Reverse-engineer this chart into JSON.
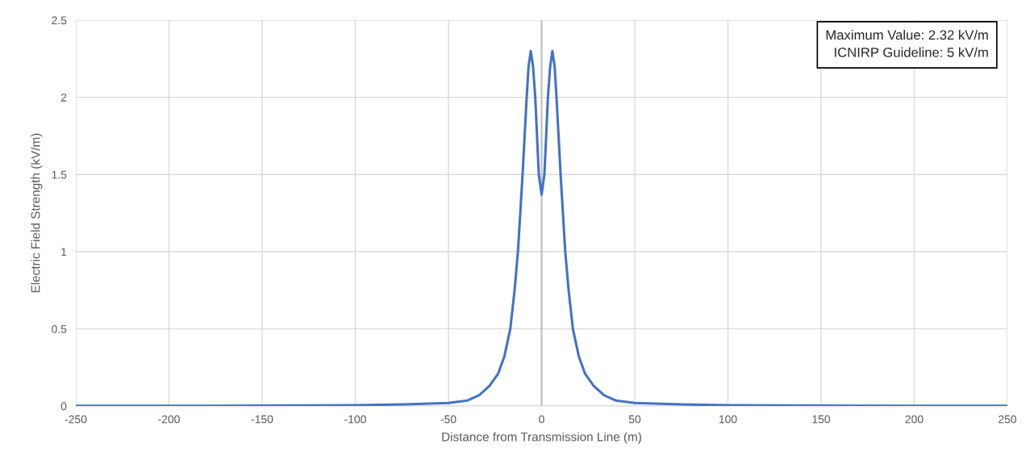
{
  "chart_data": {
    "type": "line",
    "xlabel": "Distance from Transmission Line (m)",
    "ylabel": "Electric Field Strength (kV/m)",
    "x": [
      -250,
      -200,
      -150,
      -100,
      -75,
      -50,
      -40,
      -33.5,
      -28,
      -23.3,
      -20,
      -16.8,
      -14.5,
      -12.7,
      -10.2,
      -8,
      -7,
      -5.8,
      -4.6,
      -3.4,
      -1.5,
      0,
      1.5,
      3.4,
      4.6,
      5.8,
      7,
      8,
      10.2,
      12.7,
      14.5,
      16.8,
      20,
      23.3,
      28,
      33.5,
      40,
      50,
      75,
      100,
      150,
      200,
      250
    ],
    "series": [
      {
        "color": "#4472c4",
        "values": [
          0.001,
          0.001,
          0.002,
          0.005,
          0.01,
          0.02,
          0.035,
          0.07,
          0.13,
          0.21,
          0.32,
          0.5,
          0.75,
          1.0,
          1.5,
          2.0,
          2.2,
          2.3,
          2.2,
          2.0,
          1.5,
          1.37,
          1.5,
          2.0,
          2.2,
          2.3,
          2.2,
          2.0,
          1.5,
          1.0,
          0.75,
          0.5,
          0.32,
          0.21,
          0.13,
          0.07,
          0.035,
          0.02,
          0.01,
          0.005,
          0.002,
          0.001,
          0.001
        ]
      }
    ],
    "xlim": [
      -250,
      250
    ],
    "xticks": [
      -250,
      -200,
      -150,
      -100,
      -50,
      0,
      50,
      100,
      150,
      200,
      250
    ],
    "ylim": [
      0,
      2.5
    ],
    "yticks": [
      0,
      0.5,
      1,
      1.5,
      2,
      2.5
    ],
    "grid": true,
    "legend": false,
    "marker": "none",
    "line_style": "solid",
    "ref_lines": [
      {
        "axis": "x",
        "value": 0,
        "color": "#bfbfbf"
      }
    ],
    "annotations": [
      "Maximum Value: 2.32 kV/m\nICNIRP Guideline: 5 kV/m"
    ]
  }
}
